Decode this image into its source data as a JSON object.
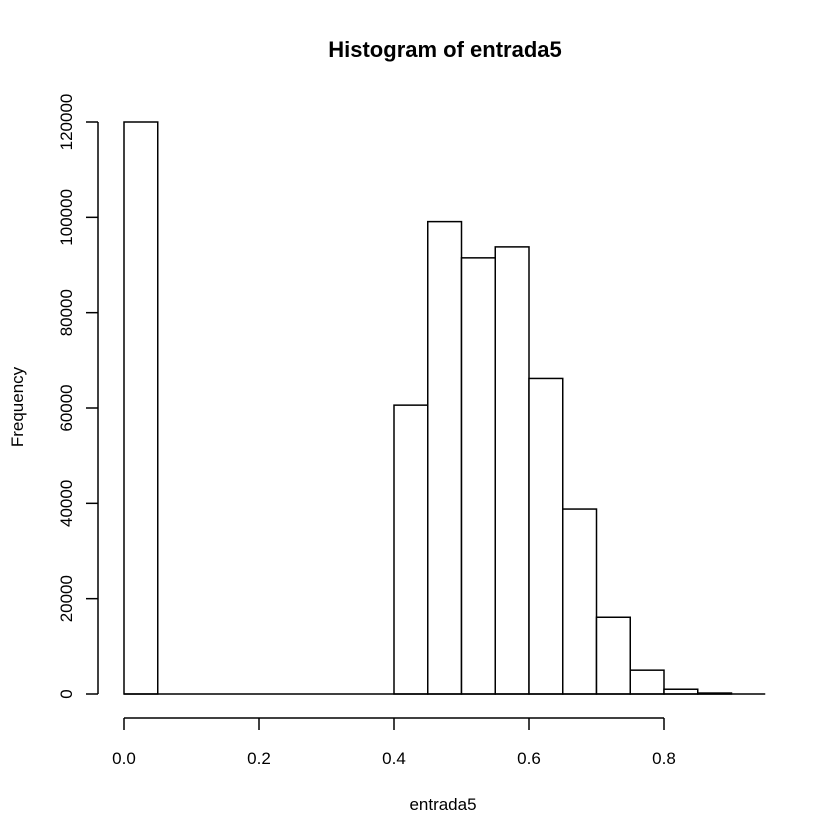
{
  "chart_data": {
    "type": "bar",
    "title": "Histogram of entrada5",
    "xlabel": "entrada5",
    "ylabel": "Frequency",
    "bin_width": 0.05,
    "bins": [
      {
        "x0": 0.0,
        "x1": 0.05,
        "count": 120000
      },
      {
        "x0": 0.05,
        "x1": 0.1,
        "count": 0
      },
      {
        "x0": 0.1,
        "x1": 0.15,
        "count": 0
      },
      {
        "x0": 0.15,
        "x1": 0.2,
        "count": 0
      },
      {
        "x0": 0.2,
        "x1": 0.25,
        "count": 0
      },
      {
        "x0": 0.25,
        "x1": 0.3,
        "count": 0
      },
      {
        "x0": 0.3,
        "x1": 0.35,
        "count": 0
      },
      {
        "x0": 0.35,
        "x1": 0.4,
        "count": 0
      },
      {
        "x0": 0.4,
        "x1": 0.45,
        "count": 60600
      },
      {
        "x0": 0.45,
        "x1": 0.5,
        "count": 99100
      },
      {
        "x0": 0.5,
        "x1": 0.55,
        "count": 91500
      },
      {
        "x0": 0.55,
        "x1": 0.6,
        "count": 93800
      },
      {
        "x0": 0.6,
        "x1": 0.65,
        "count": 66200
      },
      {
        "x0": 0.65,
        "x1": 0.7,
        "count": 38800
      },
      {
        "x0": 0.7,
        "x1": 0.75,
        "count": 16100
      },
      {
        "x0": 0.75,
        "x1": 0.8,
        "count": 5000
      },
      {
        "x0": 0.8,
        "x1": 0.85,
        "count": 1000
      },
      {
        "x0": 0.85,
        "x1": 0.9,
        "count": 200
      }
    ],
    "xlim": [
      0.0,
      0.95
    ],
    "ylim": [
      0,
      120000
    ],
    "x_ticks": [
      0.0,
      0.2,
      0.4,
      0.6,
      0.8
    ],
    "x_tick_labels": [
      "0.0",
      "0.2",
      "0.4",
      "0.6",
      "0.8"
    ],
    "y_ticks": [
      0,
      20000,
      40000,
      60000,
      80000,
      100000,
      120000
    ],
    "y_tick_labels": [
      "0",
      "20000",
      "40000",
      "60000",
      "80000",
      "100000",
      "120000"
    ],
    "grid": false,
    "legend": "none"
  }
}
